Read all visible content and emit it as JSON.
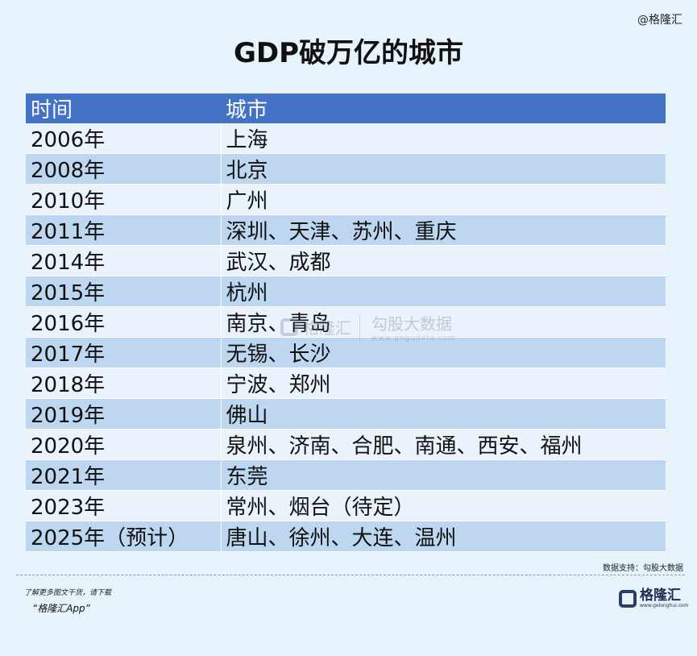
{
  "watermark_top": "@格隆汇",
  "title": "GDP破万亿的城市",
  "table": {
    "headers": [
      "时间",
      "城市"
    ],
    "rows": [
      {
        "year": "2006年",
        "cities": "上海"
      },
      {
        "year": "2008年",
        "cities": "北京"
      },
      {
        "year": "2010年",
        "cities": "广州"
      },
      {
        "year": "2011年",
        "cities": "深圳、天津、苏州、重庆"
      },
      {
        "year": "2014年",
        "cities": "武汉、成都"
      },
      {
        "year": "2015年",
        "cities": "杭州"
      },
      {
        "year": "2016年",
        "cities": "南京、青岛"
      },
      {
        "year": "2017年",
        "cities": "无锡、长沙"
      },
      {
        "year": "2018年",
        "cities": "宁波、郑州"
      },
      {
        "year": "2019年",
        "cities": "佛山"
      },
      {
        "year": "2020年",
        "cities": "泉州、济南、合肥、南通、西安、福州"
      },
      {
        "year": "2021年",
        "cities": "东莞"
      },
      {
        "year": "2023年",
        "cities": "常州、烟台（待定）"
      },
      {
        "year": "2025年（预计）",
        "cities": "唐山、徐州、大连、温州"
      }
    ]
  },
  "center_watermark": {
    "name": "格隆汇",
    "brand": "勾股大数据",
    "url": "www.gogudata.com"
  },
  "source": "数据支持：勾股大数据",
  "footer": {
    "note": "了解更多图文干货，请下载",
    "app": "“格隆汇App”",
    "logo_text": "格隆汇",
    "logo_url": "www.gelonghui.com"
  }
}
